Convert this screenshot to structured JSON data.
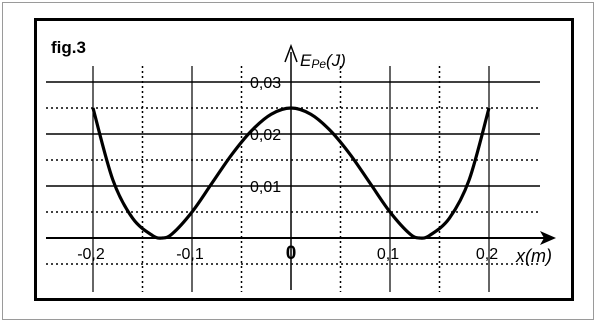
{
  "chart_data": {
    "type": "line",
    "figure_label": "fig.3",
    "ylabel_main": "E",
    "ylabel_sub": "Pe",
    "ylabel_unit": "(J)",
    "xlabel": "x(m)",
    "x_ticks": [
      {
        "value": -0.2,
        "label": "-0,2"
      },
      {
        "value": -0.1,
        "label": "-0,1"
      },
      {
        "value": 0,
        "label": "0"
      },
      {
        "value": 0.1,
        "label": "0,1"
      },
      {
        "value": 0.2,
        "label": "0,2"
      }
    ],
    "y_ticks": [
      {
        "value": 0.01,
        "label": "0,01"
      },
      {
        "value": 0.02,
        "label": "0,02"
      },
      {
        "value": 0.03,
        "label": "0,03"
      }
    ],
    "xlim": [
      -0.2,
      0.2
    ],
    "ylim": [
      0,
      0.03
    ],
    "grid": true,
    "series": [
      {
        "color": "#000000",
        "x": [
          -0.2,
          -0.18,
          -0.16,
          -0.14,
          -0.13,
          -0.12,
          -0.1,
          -0.08,
          -0.06,
          -0.04,
          -0.02,
          0,
          0.02,
          0.04,
          0.06,
          0.08,
          0.1,
          0.12,
          0.13,
          0.14,
          0.16,
          0.18,
          0.2
        ],
        "y": [
          0.025,
          0.0112,
          0.0038,
          0.0005,
          0.0,
          0.0008,
          0.005,
          0.0105,
          0.016,
          0.0206,
          0.0238,
          0.025,
          0.0238,
          0.0206,
          0.016,
          0.0105,
          0.005,
          0.0008,
          0.0,
          0.0005,
          0.0038,
          0.0112,
          0.025
        ]
      }
    ]
  }
}
